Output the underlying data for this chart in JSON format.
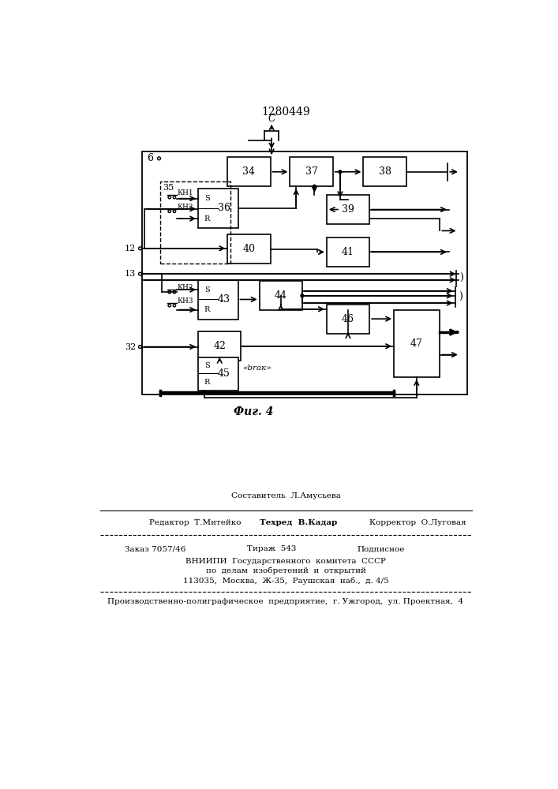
{
  "title": "1280449",
  "fig_caption": "Фиг. 4",
  "footer": {
    "compiled_by": "Составитель  Л.Амусьева",
    "editor": "Редактор  Т.Митейко",
    "techred": "Техред  В.Кадар",
    "corrector": "Корректор  О.Луговая",
    "order": "Заказ 7057/46",
    "tirazh": "Тираж  543",
    "podpisnoe": "Подписное",
    "vniipи": "ВНИИПИ  Государственного  комитета  СССР",
    "podelam": "по  делам  изобретений  и  открытий",
    "address": "113035,  Москва,  Ж-35,  Раушская  наб.,  д. 4/5",
    "predpr": "Производственно-полиграфическое  предприятие,  г. Ужгород,  ул. Проектная,  4"
  }
}
